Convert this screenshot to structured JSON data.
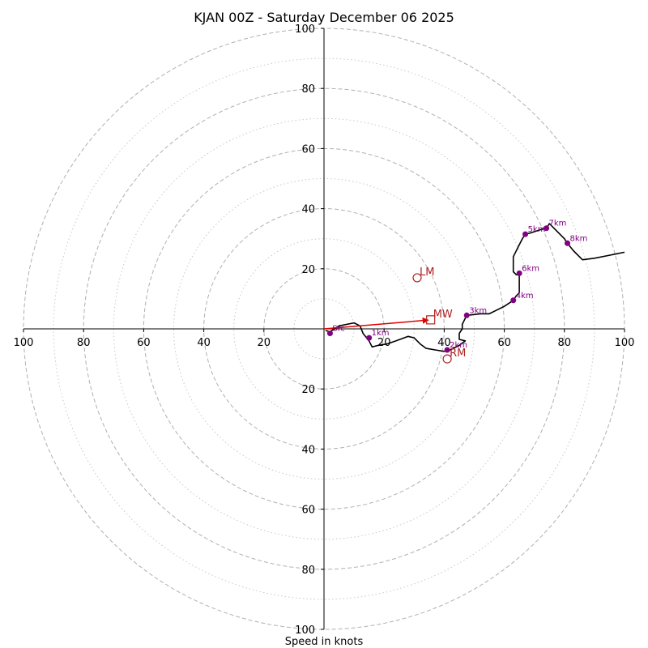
{
  "chart_data": {
    "type": "hodograph",
    "title": "KJAN 00Z - Saturday December 06 2025",
    "xlabel": "Speed in knots",
    "range": [
      -100,
      100
    ],
    "major_rings": [
      20,
      40,
      60,
      80,
      100
    ],
    "minor_rings": [
      10,
      30,
      50,
      70,
      90
    ],
    "x_tick_labels": [
      "100",
      "80",
      "60",
      "40",
      "20",
      "20",
      "40",
      "60",
      "80",
      "100"
    ],
    "x_tick_values": [
      -100,
      -80,
      -60,
      -40,
      -20,
      20,
      40,
      60,
      80,
      100
    ],
    "y_tick_labels": [
      "100",
      "80",
      "60",
      "40",
      "20",
      "20",
      "40",
      "60",
      "80",
      "100"
    ],
    "y_tick_values": [
      100,
      80,
      60,
      40,
      20,
      -20,
      -40,
      -60,
      -80,
      -100
    ],
    "trace": [
      [
        0.5,
        -0.5
      ],
      [
        2,
        -1
      ],
      [
        5,
        1
      ],
      [
        10,
        2
      ],
      [
        12,
        1
      ],
      [
        13,
        -1.5
      ],
      [
        15,
        -4
      ],
      [
        16,
        -6
      ],
      [
        18,
        -5.5
      ],
      [
        21,
        -5
      ],
      [
        24,
        -4
      ],
      [
        28,
        -2.5
      ],
      [
        30,
        -3
      ],
      [
        32,
        -5
      ],
      [
        34,
        -6.5
      ],
      [
        37,
        -7
      ],
      [
        40,
        -7.5
      ],
      [
        42,
        -7
      ],
      [
        45,
        -5.5
      ],
      [
        47,
        -4
      ],
      [
        45,
        -3.5
      ],
      [
        45,
        -1.5
      ],
      [
        46,
        0
      ],
      [
        46,
        1.5
      ],
      [
        47.5,
        4.5
      ],
      [
        52,
        5
      ],
      [
        55,
        5
      ],
      [
        57,
        6
      ],
      [
        60,
        7.5
      ],
      [
        63,
        9.5
      ],
      [
        64,
        11
      ],
      [
        65,
        12
      ],
      [
        65,
        15
      ],
      [
        65,
        18
      ],
      [
        64,
        18
      ],
      [
        63,
        19
      ],
      [
        63,
        22
      ],
      [
        63,
        24
      ],
      [
        65,
        28
      ],
      [
        66,
        30
      ],
      [
        67,
        31.5
      ],
      [
        69,
        32
      ],
      [
        72,
        33
      ],
      [
        74,
        33.5
      ],
      [
        75,
        35
      ],
      [
        77,
        33
      ],
      [
        80,
        30
      ],
      [
        81,
        28.5
      ],
      [
        83,
        26
      ],
      [
        86,
        23
      ],
      [
        90,
        23.5
      ],
      [
        95,
        24.5
      ],
      [
        100,
        25.5
      ]
    ],
    "height_markers": [
      {
        "label": "Sfc",
        "u": 2,
        "v": -1.5
      },
      {
        "label": "1km",
        "u": 15,
        "v": -3
      },
      {
        "label": "2km",
        "u": 41,
        "v": -7
      },
      {
        "label": "3km",
        "u": 47.5,
        "v": 4.5
      },
      {
        "label": "4km",
        "u": 63,
        "v": 9.5
      },
      {
        "label": "5km",
        "u": 67,
        "v": 31.5
      },
      {
        "label": "6km",
        "u": 65,
        "v": 18.5
      },
      {
        "label": "7km",
        "u": 74,
        "v": 33.5
      },
      {
        "label": "8km",
        "u": 81,
        "v": 28.5
      }
    ],
    "storm_motion": [
      {
        "label": "LM",
        "u": 31,
        "v": 17,
        "marker": "circle"
      },
      {
        "label": "RM",
        "u": 41,
        "v": -10,
        "marker": "circle"
      },
      {
        "label": "MW",
        "u": 35.5,
        "v": 3,
        "marker": "square"
      }
    ],
    "shear_arrow": {
      "from_u": 0,
      "from_v": 0,
      "to_u": 35.5,
      "to_v": 3
    },
    "colors": {
      "height_markers": "#800080",
      "storm_motion": "#b22222",
      "shear_arrow": "#e00000",
      "rings": "#b0b0b0",
      "trace": "#000000"
    }
  }
}
